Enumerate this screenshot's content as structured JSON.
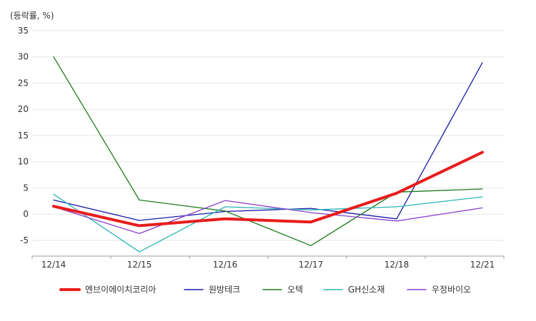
{
  "chart_data": {
    "type": "line",
    "unit_label": "(등락률, %)",
    "categories": [
      "12/14",
      "12/15",
      "12/16",
      "12/17",
      "12/18",
      "12/21"
    ],
    "ylim": [
      -8,
      35
    ],
    "yticks": [
      35,
      30,
      25,
      20,
      15,
      10,
      5,
      0,
      -5
    ],
    "grid": "horizontal",
    "legend_position": "bottom",
    "series": [
      {
        "name": "엔브이에이치코리아",
        "color": "#e81c1c",
        "width": 4,
        "values": [
          1.5,
          -2.2,
          -0.9,
          -1.5,
          4.0,
          11.8
        ]
      },
      {
        "name": "원방테크",
        "color": "#1a1aa8",
        "width": 1.3,
        "values": [
          2.7,
          -1.2,
          0.5,
          1.1,
          -0.9,
          28.9
        ]
      },
      {
        "name": "오텍",
        "color": "#1d7a1d",
        "width": 1.3,
        "values": [
          30.0,
          2.7,
          0.6,
          -6.0,
          4.2,
          4.8
        ]
      },
      {
        "name": "GH신소재",
        "color": "#2ab5b5",
        "width": 1.3,
        "values": [
          3.8,
          -7.2,
          1.4,
          0.8,
          1.4,
          3.3
        ]
      },
      {
        "name": "우정바이오",
        "color": "#8a3fd0",
        "width": 1.3,
        "values": [
          1.4,
          -3.7,
          2.6,
          0.3,
          -1.3,
          1.2
        ]
      }
    ]
  }
}
